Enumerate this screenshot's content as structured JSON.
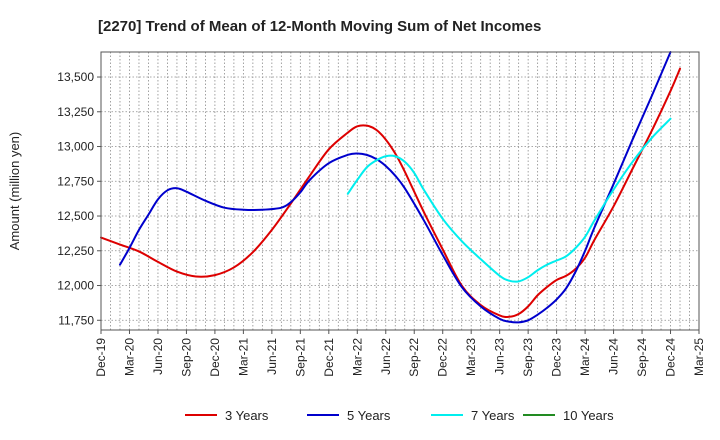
{
  "chart_data": {
    "type": "line",
    "title": "[2270]  Trend of Mean of 12-Month Moving Sum of Net Incomes",
    "xlabel": "",
    "ylabel": "Amount (million yen)",
    "ylim": [
      11680,
      13680
    ],
    "yticks": [
      11750,
      12000,
      12250,
      12500,
      12750,
      13000,
      13250,
      13500
    ],
    "ytick_labels": [
      "11,750",
      "12,000",
      "12,250",
      "12,500",
      "12,750",
      "13,000",
      "13,250",
      "13,500"
    ],
    "x_range": [
      0,
      63
    ],
    "xtick_positions": [
      0,
      3,
      6,
      9,
      12,
      15,
      18,
      21,
      24,
      27,
      30,
      33,
      36,
      39,
      42,
      45,
      48,
      51,
      54,
      57,
      60,
      63
    ],
    "xtick_labels": [
      "Dec-19",
      "Mar-20",
      "Jun-20",
      "Sep-20",
      "Dec-20",
      "Mar-21",
      "Jun-21",
      "Sep-21",
      "Dec-21",
      "Mar-22",
      "Jun-22",
      "Sep-22",
      "Dec-22",
      "Mar-23",
      "Jun-23",
      "Sep-23",
      "Dec-23",
      "Mar-24",
      "Jun-24",
      "Sep-24",
      "Dec-24",
      "Mar-25"
    ],
    "grid": true,
    "legend_position": "bottom",
    "series": [
      {
        "name": "3 Years",
        "color": "#dd0000",
        "points": [
          [
            0,
            12345
          ],
          [
            2,
            12295
          ],
          [
            4,
            12245
          ],
          [
            6,
            12170
          ],
          [
            8,
            12100
          ],
          [
            10,
            12065
          ],
          [
            12,
            12075
          ],
          [
            14,
            12130
          ],
          [
            16,
            12240
          ],
          [
            18,
            12400
          ],
          [
            20,
            12590
          ],
          [
            22,
            12790
          ],
          [
            24,
            12980
          ],
          [
            26,
            13100
          ],
          [
            27,
            13145
          ],
          [
            28,
            13150
          ],
          [
            29,
            13120
          ],
          [
            30,
            13050
          ],
          [
            31,
            12950
          ],
          [
            32,
            12820
          ],
          [
            34,
            12530
          ],
          [
            36,
            12260
          ],
          [
            38,
            12000
          ],
          [
            40,
            11860
          ],
          [
            42,
            11785
          ],
          [
            43,
            11775
          ],
          [
            44,
            11795
          ],
          [
            45,
            11850
          ],
          [
            46,
            11930
          ],
          [
            47,
            11990
          ],
          [
            48,
            12040
          ],
          [
            49,
            12070
          ],
          [
            50,
            12120
          ],
          [
            51,
            12200
          ],
          [
            52,
            12330
          ],
          [
            54,
            12570
          ],
          [
            56,
            12840
          ],
          [
            58,
            13110
          ],
          [
            60,
            13400
          ],
          [
            61,
            13560
          ]
        ]
      },
      {
        "name": "5 Years",
        "color": "#0000cc",
        "points": [
          [
            2,
            12150
          ],
          [
            3,
            12270
          ],
          [
            4,
            12400
          ],
          [
            5,
            12510
          ],
          [
            6,
            12620
          ],
          [
            7,
            12685
          ],
          [
            8,
            12700
          ],
          [
            9,
            12675
          ],
          [
            11,
            12610
          ],
          [
            13,
            12560
          ],
          [
            15,
            12545
          ],
          [
            17,
            12545
          ],
          [
            19,
            12560
          ],
          [
            20,
            12600
          ],
          [
            21,
            12670
          ],
          [
            22,
            12760
          ],
          [
            24,
            12880
          ],
          [
            26,
            12940
          ],
          [
            27,
            12950
          ],
          [
            28,
            12940
          ],
          [
            29,
            12910
          ],
          [
            30,
            12860
          ],
          [
            31,
            12790
          ],
          [
            32,
            12700
          ],
          [
            34,
            12470
          ],
          [
            36,
            12220
          ],
          [
            38,
            11990
          ],
          [
            40,
            11850
          ],
          [
            42,
            11760
          ],
          [
            43,
            11740
          ],
          [
            44,
            11735
          ],
          [
            45,
            11750
          ],
          [
            46,
            11790
          ],
          [
            47,
            11840
          ],
          [
            48,
            11900
          ],
          [
            49,
            11980
          ],
          [
            50,
            12100
          ],
          [
            51,
            12250
          ],
          [
            52,
            12420
          ],
          [
            54,
            12730
          ],
          [
            56,
            13050
          ],
          [
            58,
            13360
          ],
          [
            60,
            13680
          ]
        ]
      },
      {
        "name": "7 Years",
        "color": "#00eeee",
        "points": [
          [
            26,
            12660
          ],
          [
            27,
            12760
          ],
          [
            28,
            12850
          ],
          [
            29,
            12900
          ],
          [
            30,
            12930
          ],
          [
            31,
            12930
          ],
          [
            32,
            12890
          ],
          [
            33,
            12810
          ],
          [
            34,
            12690
          ],
          [
            36,
            12480
          ],
          [
            38,
            12320
          ],
          [
            40,
            12190
          ],
          [
            42,
            12070
          ],
          [
            43,
            12035
          ],
          [
            44,
            12030
          ],
          [
            45,
            12060
          ],
          [
            46,
            12110
          ],
          [
            47,
            12150
          ],
          [
            48,
            12180
          ],
          [
            49,
            12210
          ],
          [
            50,
            12270
          ],
          [
            51,
            12350
          ],
          [
            52,
            12470
          ],
          [
            54,
            12690
          ],
          [
            56,
            12890
          ],
          [
            58,
            13060
          ],
          [
            60,
            13200
          ]
        ]
      },
      {
        "name": "10 Years",
        "color": "#228b22",
        "points": []
      }
    ]
  }
}
